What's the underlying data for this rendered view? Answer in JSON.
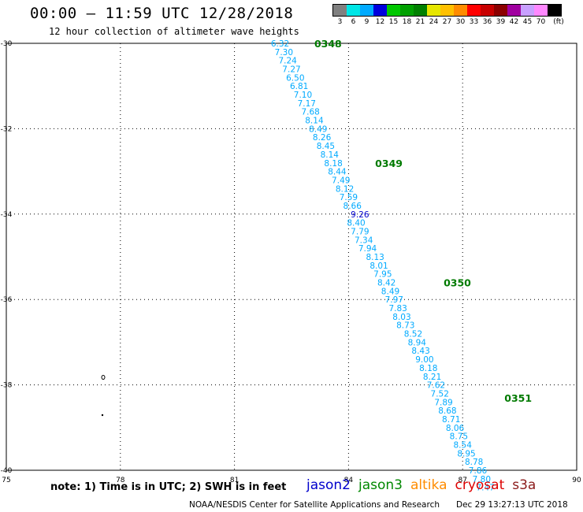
{
  "header": {
    "title": "00:00 – 11:59 UTC 12/28/2018",
    "subtitle": "12 hour collection of altimeter wave heights"
  },
  "legend": {
    "unit": "(ft)",
    "bins": [
      {
        "label": "3",
        "color": "#808080"
      },
      {
        "label": "6",
        "color": "#00e6e6"
      },
      {
        "label": "9",
        "color": "#00aaff"
      },
      {
        "label": "12",
        "color": "#0000dd"
      },
      {
        "label": "15",
        "color": "#00c800"
      },
      {
        "label": "18",
        "color": "#00a000"
      },
      {
        "label": "21",
        "color": "#008000"
      },
      {
        "label": "24",
        "color": "#e6e600"
      },
      {
        "label": "27",
        "color": "#ffc000"
      },
      {
        "label": "30",
        "color": "#ff8c00"
      },
      {
        "label": "33",
        "color": "#ff0000"
      },
      {
        "label": "36",
        "color": "#c80000"
      },
      {
        "label": "39",
        "color": "#8b0000"
      },
      {
        "label": "42",
        "color": "#a000a0"
      },
      {
        "label": "45",
        "color": "#c8a0ff"
      },
      {
        "label": "70",
        "color": "#ff88ff"
      },
      {
        "label": "",
        "color": "#000000"
      }
    ]
  },
  "map": {
    "lon_range": [
      75,
      90
    ],
    "lat_range": [
      -40,
      -30
    ],
    "lon_ticks": [
      "75",
      "78",
      "81",
      "84",
      "87",
      "90"
    ],
    "lat_ticks": [
      "-30",
      "-32",
      "-34",
      "-36",
      "-38",
      "-40"
    ],
    "grid": true,
    "track_color": "#00aaff",
    "track_label_color": "#007a00",
    "track_labels": [
      {
        "text": "0348",
        "lat": -30.0,
        "lon": 83.1
      },
      {
        "text": "0349",
        "lat": -32.8,
        "lon": 84.7
      },
      {
        "text": "0350",
        "lat": -35.6,
        "lon": 86.5
      },
      {
        "text": "0351",
        "lat": -38.3,
        "lon": 88.1
      }
    ],
    "observations": [
      {
        "value": "6.32",
        "lat": -30.0,
        "lon": 82.2
      },
      {
        "value": "7.30",
        "lat": -30.2,
        "lon": 82.3
      },
      {
        "value": "7.24",
        "lat": -30.4,
        "lon": 82.4
      },
      {
        "value": "7.27",
        "lat": -30.6,
        "lon": 82.5
      },
      {
        "value": "6.50",
        "lat": -30.8,
        "lon": 82.6
      },
      {
        "value": "6.81",
        "lat": -31.0,
        "lon": 82.7
      },
      {
        "value": "7.10",
        "lat": -31.2,
        "lon": 82.8
      },
      {
        "value": "7.17",
        "lat": -31.4,
        "lon": 82.9
      },
      {
        "value": "7.68",
        "lat": -31.6,
        "lon": 83.0
      },
      {
        "value": "8.14",
        "lat": -31.8,
        "lon": 83.1
      },
      {
        "value": "8.49",
        "lat": -32.0,
        "lon": 83.2
      },
      {
        "value": "8.26",
        "lat": -32.2,
        "lon": 83.3
      },
      {
        "value": "8.45",
        "lat": -32.4,
        "lon": 83.4
      },
      {
        "value": "8.14",
        "lat": -32.6,
        "lon": 83.5
      },
      {
        "value": "8.18",
        "lat": -32.8,
        "lon": 83.6
      },
      {
        "value": "8.44",
        "lat": -33.0,
        "lon": 83.7
      },
      {
        "value": "7.49",
        "lat": -33.2,
        "lon": 83.8
      },
      {
        "value": "8.12",
        "lat": -33.4,
        "lon": 83.9
      },
      {
        "value": "7.59",
        "lat": -33.6,
        "lon": 84.0
      },
      {
        "value": "8.66",
        "lat": -33.8,
        "lon": 84.1
      },
      {
        "value": "9.26",
        "lat": -34.0,
        "lon": 84.3,
        "color": "#0000cc"
      },
      {
        "value": "8.40",
        "lat": -34.2,
        "lon": 84.2
      },
      {
        "value": "7.79",
        "lat": -34.4,
        "lon": 84.3
      },
      {
        "value": "7.34",
        "lat": -34.6,
        "lon": 84.4
      },
      {
        "value": "7.94",
        "lat": -34.8,
        "lon": 84.5
      },
      {
        "value": "8.13",
        "lat": -35.0,
        "lon": 84.7
      },
      {
        "value": "8.01",
        "lat": -35.2,
        "lon": 84.8
      },
      {
        "value": "7.95",
        "lat": -35.4,
        "lon": 84.9
      },
      {
        "value": "8.42",
        "lat": -35.6,
        "lon": 85.0
      },
      {
        "value": "8.49",
        "lat": -35.8,
        "lon": 85.1
      },
      {
        "value": "7.97",
        "lat": -36.0,
        "lon": 85.2
      },
      {
        "value": "7.83",
        "lat": -36.2,
        "lon": 85.3
      },
      {
        "value": "8.03",
        "lat": -36.4,
        "lon": 85.4
      },
      {
        "value": "8.73",
        "lat": -36.6,
        "lon": 85.5
      },
      {
        "value": "8.52",
        "lat": -36.8,
        "lon": 85.7
      },
      {
        "value": "8.94",
        "lat": -37.0,
        "lon": 85.8
      },
      {
        "value": "8.43",
        "lat": -37.2,
        "lon": 85.9
      },
      {
        "value": "9.00",
        "lat": -37.4,
        "lon": 86.0
      },
      {
        "value": "8.18",
        "lat": -37.6,
        "lon": 86.1
      },
      {
        "value": "8.21",
        "lat": -37.8,
        "lon": 86.2
      },
      {
        "value": "7.62",
        "lat": -38.0,
        "lon": 86.3
      },
      {
        "value": "7.52",
        "lat": -38.2,
        "lon": 86.4
      },
      {
        "value": "7.89",
        "lat": -38.4,
        "lon": 86.5
      },
      {
        "value": "8.68",
        "lat": -38.6,
        "lon": 86.6
      },
      {
        "value": "8.71",
        "lat": -38.8,
        "lon": 86.7
      },
      {
        "value": "8.06",
        "lat": -39.0,
        "lon": 86.8
      },
      {
        "value": "8.75",
        "lat": -39.2,
        "lon": 86.9
      },
      {
        "value": "8.54",
        "lat": -39.4,
        "lon": 87.0
      },
      {
        "value": "8.95",
        "lat": -39.6,
        "lon": 87.1
      },
      {
        "value": "8.78",
        "lat": -39.8,
        "lon": 87.3
      },
      {
        "value": "7.86",
        "lat": -40.0,
        "lon": 87.4
      },
      {
        "value": "7.80",
        "lat": -40.2,
        "lon": 87.5
      },
      {
        "value": "7.47",
        "lat": -40.4,
        "lon": 87.6
      }
    ]
  },
  "note": "note: 1) Time is in UTC; 2) SWH is in feet",
  "satellites": [
    {
      "name": "jason2",
      "color": "#0000cc"
    },
    {
      "name": "jason3",
      "color": "#008800"
    },
    {
      "name": "altika",
      "color": "#ff8c00"
    },
    {
      "name": "cryosat",
      "color": "#dd0000"
    },
    {
      "name": "s3a",
      "color": "#8b1a1a"
    }
  ],
  "footer": {
    "credit": "NOAA/NESDIS Center for Satellite Applications and Research",
    "timestamp": "Dec 29 13:27:13 UTC 2018"
  }
}
